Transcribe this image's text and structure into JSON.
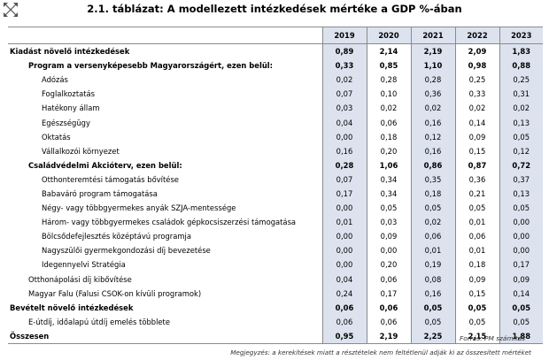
{
  "title": "2.1. táblázat: A modellezett intézkedések mértéke a GDP %-ában",
  "header": {
    "years": [
      "2019",
      "2020",
      "2021",
      "2022",
      "2023"
    ]
  },
  "rows": [
    {
      "label": "Kiadást növelő intézkedések",
      "level": 0,
      "bold": true,
      "values": [
        "0,89",
        "2,14",
        "2,19",
        "2,09",
        "1,83"
      ]
    },
    {
      "label": "Program a versenyképesebb Magyarországért, ezen belül:",
      "level": 1,
      "bold": true,
      "values": [
        "0,33",
        "0,85",
        "1,10",
        "0,98",
        "0,88"
      ]
    },
    {
      "label": "Adózás",
      "level": 2,
      "bold": false,
      "values": [
        "0,02",
        "0,28",
        "0,28",
        "0,25",
        "0,25"
      ]
    },
    {
      "label": "Foglalkoztatás",
      "level": 2,
      "bold": false,
      "values": [
        "0,07",
        "0,10",
        "0,36",
        "0,33",
        "0,31"
      ]
    },
    {
      "label": "Hatékony állam",
      "level": 2,
      "bold": false,
      "values": [
        "0,03",
        "0,02",
        "0,02",
        "0,02",
        "0,02"
      ]
    },
    {
      "label": "Egészségügy",
      "level": 2,
      "bold": false,
      "values": [
        "0,04",
        "0,06",
        "0,16",
        "0,14",
        "0,13"
      ]
    },
    {
      "label": "Oktatás",
      "level": 2,
      "bold": false,
      "values": [
        "0,00",
        "0,18",
        "0,12",
        "0,09",
        "0,05"
      ]
    },
    {
      "label": "Vállalkozói környezet",
      "level": 2,
      "bold": false,
      "values": [
        "0,16",
        "0,20",
        "0,16",
        "0,15",
        "0,12"
      ]
    },
    {
      "label": "Családvédelmi Akcióterv, ezen belül:",
      "level": 1,
      "bold": true,
      "values": [
        "0,28",
        "1,06",
        "0,86",
        "0,87",
        "0,72"
      ]
    },
    {
      "label": "Otthonteremtési támogatás bővítése",
      "level": 2,
      "bold": false,
      "values": [
        "0,07",
        "0,34",
        "0,35",
        "0,36",
        "0,37"
      ]
    },
    {
      "label": "Babaváró program támogatása",
      "level": 2,
      "bold": false,
      "values": [
        "0,17",
        "0,34",
        "0,18",
        "0,21",
        "0,13"
      ]
    },
    {
      "label": "Négy- vagy többgyermekes anyák SZJA-mentessége",
      "level": 2,
      "bold": false,
      "values": [
        "0,00",
        "0,05",
        "0,05",
        "0,05",
        "0,05"
      ]
    },
    {
      "label": "Három- vagy többgyermekes családok gépkocsiszerzési támogatása",
      "level": 2,
      "bold": false,
      "values": [
        "0,01",
        "0,03",
        "0,02",
        "0,01",
        "0,00"
      ]
    },
    {
      "label": "Bölcsődefejlesztés középtávú programja",
      "level": 2,
      "bold": false,
      "values": [
        "0,00",
        "0,09",
        "0,06",
        "0,06",
        "0,00"
      ]
    },
    {
      "label": "Nagyszülői gyermekgondozási díj bevezetése",
      "level": 2,
      "bold": false,
      "values": [
        "0,00",
        "0,00",
        "0,01",
        "0,01",
        "0,00"
      ]
    },
    {
      "label": "Idegennyelvi Stratégia",
      "level": 2,
      "bold": false,
      "values": [
        "0,00",
        "0,20",
        "0,19",
        "0,18",
        "0,17"
      ]
    },
    {
      "label": "Otthonápolási díj kibővítése",
      "level": 1,
      "bold": false,
      "values": [
        "0,04",
        "0,06",
        "0,08",
        "0,09",
        "0,09"
      ]
    },
    {
      "label": "Magyar Falu (Falusi CSOK-on kívüli programok)",
      "level": 1,
      "bold": false,
      "values": [
        "0,24",
        "0,17",
        "0,16",
        "0,15",
        "0,14"
      ]
    },
    {
      "label": "Bevételt növelő intézkedések",
      "level": 0,
      "bold": true,
      "values": [
        "0,06",
        "0,06",
        "0,05",
        "0,05",
        "0,05"
      ]
    },
    {
      "label": "E-útdíj, időalapú útdíj emelés többlete",
      "level": 1,
      "bold": false,
      "values": [
        "0,06",
        "0,06",
        "0,05",
        "0,05",
        "0,05"
      ]
    },
    {
      "label": "Összesen",
      "level": 0,
      "bold": true,
      "values": [
        "0,95",
        "2,19",
        "2,25",
        "2,15",
        "1,88"
      ]
    }
  ],
  "footer": {
    "source": "Forrás: PM számítás",
    "note": "Megjegyzés: a kerekítések miatt a résztételek nem feltétlenül adják ki az összesített mértéket"
  },
  "icons": {
    "corner": "expand-arrows-icon"
  }
}
